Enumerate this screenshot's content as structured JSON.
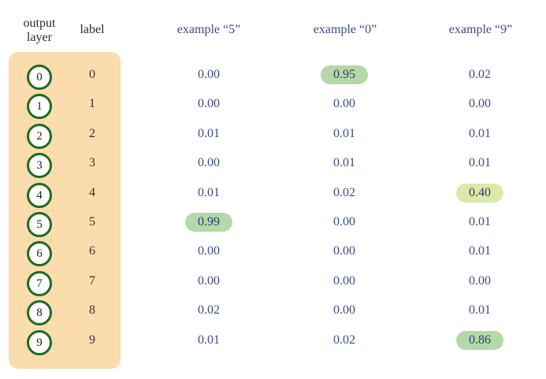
{
  "headers": {
    "output_layer_line1": "output",
    "output_layer_line2": "layer",
    "label": "label",
    "examples": [
      "example “5”",
      "example “0”",
      "example “9”"
    ]
  },
  "rows": [
    {
      "node": "0",
      "label": "0",
      "values": [
        "0.00",
        "0.95",
        "0.02"
      ]
    },
    {
      "node": "1",
      "label": "1",
      "values": [
        "0.00",
        "0.00",
        "0.00"
      ]
    },
    {
      "node": "2",
      "label": "2",
      "values": [
        "0.01",
        "0.01",
        "0.01"
      ]
    },
    {
      "node": "3",
      "label": "3",
      "values": [
        "0.00",
        "0.01",
        "0.01"
      ]
    },
    {
      "node": "4",
      "label": "4",
      "values": [
        "0.01",
        "0.02",
        "0.40"
      ]
    },
    {
      "node": "5",
      "label": "5",
      "values": [
        "0.99",
        "0.00",
        "0.01"
      ]
    },
    {
      "node": "6",
      "label": "6",
      "values": [
        "0.00",
        "0.00",
        "0.01"
      ]
    },
    {
      "node": "7",
      "label": "7",
      "values": [
        "0.00",
        "0.00",
        "0.00"
      ]
    },
    {
      "node": "8",
      "label": "8",
      "values": [
        "0.02",
        "0.00",
        "0.01"
      ]
    },
    {
      "node": "9",
      "label": "9",
      "values": [
        "0.01",
        "0.02",
        "0.86"
      ]
    }
  ],
  "highlights": [
    {
      "row": 5,
      "col": 0,
      "style": "strong"
    },
    {
      "row": 0,
      "col": 1,
      "style": "strong"
    },
    {
      "row": 4,
      "col": 2,
      "style": "weak"
    },
    {
      "row": 9,
      "col": 2,
      "style": "strong"
    }
  ],
  "colors": {
    "panel": "#fbdcad",
    "node_ring": "#1e6a22",
    "highlight_strong": "#b4d8a8",
    "highlight_weak": "#dce9a8",
    "value_text": "#3a4a8a"
  }
}
